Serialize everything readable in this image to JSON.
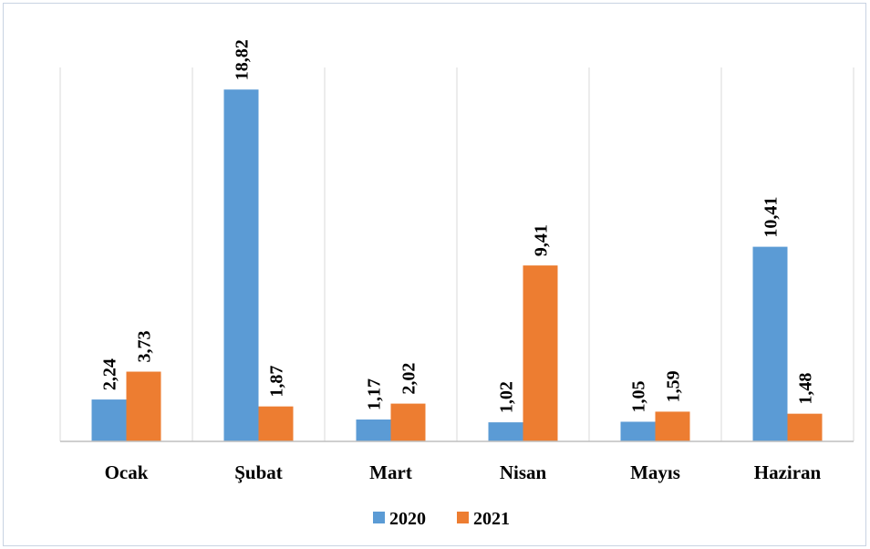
{
  "chart_data": {
    "type": "bar",
    "categories": [
      "Ocak",
      "Şubat",
      "Mart",
      "Nisan",
      "Mayıs",
      "Haziran"
    ],
    "series": [
      {
        "name": "2020",
        "values": [
          2.24,
          18.82,
          1.17,
          1.02,
          1.05,
          10.41
        ],
        "labels": [
          "2,24",
          "18,82",
          "1,17",
          "1,02",
          "1,05",
          "10,41"
        ],
        "color": "#5B9BD5"
      },
      {
        "name": "2021",
        "values": [
          3.73,
          1.87,
          2.02,
          9.41,
          1.59,
          1.48
        ],
        "labels": [
          "3,73",
          "1,87",
          "2,02",
          "9,41",
          "1,59",
          "1,48"
        ],
        "color": "#ED7D31"
      }
    ],
    "ylim": [
      0,
      20
    ],
    "grid": "vertical separators",
    "legend": "bottom"
  }
}
